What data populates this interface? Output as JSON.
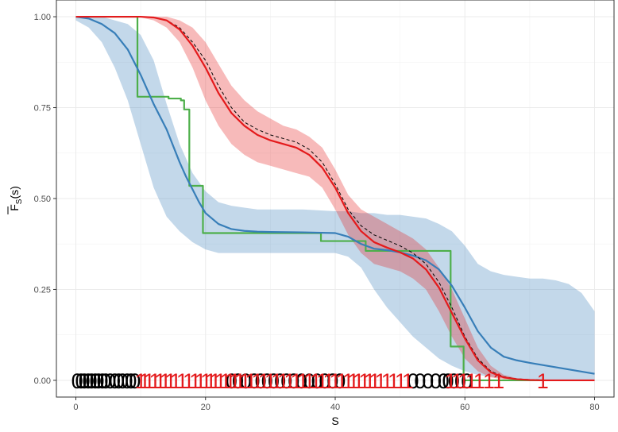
{
  "chart_data": {
    "type": "line",
    "xlabel": "S",
    "ylabel_main": "F",
    "ylabel_sub": "S",
    "ylabel_arg": "(s)",
    "xlim": [
      -3,
      83
    ],
    "ylim": [
      -0.046,
      1.046
    ],
    "x_ticks": [
      0,
      20,
      40,
      60,
      80
    ],
    "x_tick_labels": [
      "0",
      "20",
      "40",
      "60",
      "80"
    ],
    "y_ticks": [
      0,
      0.25,
      0.5,
      0.75,
      1
    ],
    "y_tick_labels": [
      "0.00",
      "0.25",
      "0.50",
      "0.75",
      "1.00"
    ],
    "grid": true,
    "legend": "none",
    "colors": {
      "blue": "#377eb8",
      "red": "#e41a1c",
      "green": "#4daf4a",
      "blue_band": "#377eb8",
      "red_band": "#e41a1c",
      "dashed": "#000000"
    },
    "series": [
      {
        "color_key": "blue_band",
        "kind": "band",
        "x": [
          0,
          2,
          4,
          6,
          8,
          10,
          12,
          14,
          16,
          18,
          20,
          22,
          24,
          26,
          28,
          30,
          35,
          40,
          42,
          44,
          46,
          48,
          50,
          52,
          54,
          56,
          58,
          60,
          62,
          64,
          66,
          68,
          70,
          72,
          74,
          76,
          78,
          80
        ],
        "upper": [
          1.0,
          1.0,
          1.0,
          0.99,
          0.98,
          0.95,
          0.88,
          0.76,
          0.65,
          0.57,
          0.52,
          0.49,
          0.48,
          0.475,
          0.47,
          0.47,
          0.47,
          0.465,
          0.465,
          0.46,
          0.46,
          0.455,
          0.455,
          0.45,
          0.445,
          0.43,
          0.41,
          0.37,
          0.32,
          0.3,
          0.29,
          0.285,
          0.28,
          0.28,
          0.275,
          0.265,
          0.24,
          0.19
        ],
        "lower": [
          0.99,
          0.97,
          0.93,
          0.86,
          0.77,
          0.65,
          0.53,
          0.45,
          0.41,
          0.38,
          0.36,
          0.35,
          0.35,
          0.35,
          0.35,
          0.35,
          0.35,
          0.35,
          0.34,
          0.31,
          0.25,
          0.2,
          0.16,
          0.12,
          0.09,
          0.06,
          0.04,
          0.025,
          0.015,
          0.01,
          0.005,
          0.003,
          0.002,
          0.001,
          0.0,
          0.0,
          0.0,
          0.0
        ]
      },
      {
        "color_key": "red_band",
        "kind": "band",
        "x": [
          0,
          5,
          8,
          10,
          12,
          14,
          16,
          18,
          20,
          22,
          24,
          26,
          28,
          30,
          32,
          34,
          36,
          38,
          40,
          42,
          44,
          46,
          48,
          50,
          52,
          54,
          56,
          58,
          60,
          62,
          64,
          66,
          68,
          70,
          72,
          74,
          76,
          78,
          80
        ],
        "upper": [
          1.0,
          1.0,
          1.0,
          1.0,
          1.0,
          1.0,
          0.99,
          0.97,
          0.93,
          0.87,
          0.81,
          0.77,
          0.74,
          0.72,
          0.7,
          0.69,
          0.67,
          0.64,
          0.58,
          0.51,
          0.47,
          0.45,
          0.43,
          0.41,
          0.39,
          0.36,
          0.31,
          0.25,
          0.17,
          0.09,
          0.04,
          0.015,
          0.006,
          0.002,
          0.001,
          0.0,
          0.0,
          0.0,
          0.0
        ],
        "lower": [
          1.0,
          1.0,
          1.0,
          0.998,
          0.99,
          0.97,
          0.93,
          0.86,
          0.77,
          0.7,
          0.65,
          0.62,
          0.6,
          0.59,
          0.58,
          0.57,
          0.56,
          0.53,
          0.47,
          0.4,
          0.35,
          0.32,
          0.31,
          0.3,
          0.28,
          0.25,
          0.19,
          0.12,
          0.06,
          0.025,
          0.008,
          0.003,
          0.001,
          0.0,
          0.0,
          0.0,
          0.0,
          0.0,
          0.0
        ]
      },
      {
        "color_key": "green",
        "kind": "step",
        "x": [
          0,
          9.5,
          9.5,
          14.3,
          14.3,
          16.2,
          16.2,
          16.7,
          16.7,
          17.5,
          17.5,
          19.6,
          19.6,
          37.8,
          37.8,
          44.7,
          44.7,
          57.8,
          57.8,
          59.8,
          59.8,
          63.2,
          63.2,
          72
        ],
        "y": [
          1.0,
          1.0,
          0.78,
          0.78,
          0.775,
          0.775,
          0.77,
          0.77,
          0.745,
          0.745,
          0.535,
          0.535,
          0.405,
          0.405,
          0.383,
          0.383,
          0.356,
          0.356,
          0.093,
          0.093,
          0.0,
          0.0,
          0.0,
          0.0
        ]
      },
      {
        "color_key": "blue",
        "kind": "line",
        "x": [
          0,
          2,
          4,
          6,
          8,
          10,
          12,
          14,
          16,
          17,
          18,
          19,
          20,
          22,
          24,
          26,
          28,
          30,
          35,
          40,
          42,
          44,
          46,
          48,
          50,
          52,
          54,
          56,
          58,
          60,
          62,
          64,
          66,
          68,
          70,
          72,
          74,
          76,
          78,
          80
        ],
        "y": [
          1.0,
          0.995,
          0.98,
          0.955,
          0.91,
          0.84,
          0.76,
          0.69,
          0.6,
          0.56,
          0.525,
          0.49,
          0.46,
          0.43,
          0.416,
          0.411,
          0.409,
          0.408,
          0.407,
          0.405,
          0.395,
          0.375,
          0.362,
          0.358,
          0.352,
          0.343,
          0.33,
          0.305,
          0.26,
          0.2,
          0.135,
          0.09,
          0.065,
          0.055,
          0.048,
          0.042,
          0.036,
          0.03,
          0.024,
          0.018
        ]
      },
      {
        "color_key": "dashed",
        "kind": "dashed",
        "x": [
          0,
          5,
          8,
          10,
          12,
          14,
          16,
          18,
          20,
          22,
          24,
          26,
          28,
          30,
          32,
          34,
          36,
          38,
          40,
          42,
          44,
          46,
          48,
          50,
          52,
          54,
          56,
          58,
          60,
          62,
          64,
          66,
          68,
          70,
          72,
          74,
          76,
          78,
          80
        ],
        "y": [
          1.0,
          1.0,
          1.0,
          1.0,
          0.998,
          0.99,
          0.97,
          0.93,
          0.88,
          0.81,
          0.75,
          0.71,
          0.69,
          0.675,
          0.665,
          0.655,
          0.635,
          0.6,
          0.54,
          0.47,
          0.425,
          0.4,
          0.385,
          0.37,
          0.35,
          0.32,
          0.27,
          0.2,
          0.12,
          0.06,
          0.025,
          0.01,
          0.004,
          0.002,
          0.001,
          0.0,
          0.0,
          0.0,
          0.0
        ]
      },
      {
        "color_key": "red",
        "kind": "line",
        "x": [
          0,
          5,
          8,
          10,
          12,
          14,
          16,
          18,
          20,
          22,
          24,
          26,
          28,
          30,
          32,
          34,
          36,
          38,
          40,
          42,
          44,
          46,
          48,
          50,
          52,
          54,
          56,
          58,
          60,
          62,
          64,
          66,
          68,
          70,
          72,
          74,
          76,
          78,
          80
        ],
        "y": [
          1.0,
          1.0,
          1.0,
          1.0,
          0.998,
          0.99,
          0.965,
          0.92,
          0.86,
          0.79,
          0.735,
          0.7,
          0.675,
          0.66,
          0.65,
          0.64,
          0.62,
          0.585,
          0.53,
          0.46,
          0.41,
          0.38,
          0.365,
          0.352,
          0.335,
          0.305,
          0.255,
          0.185,
          0.115,
          0.055,
          0.022,
          0.008,
          0.003,
          0.001,
          0.0,
          0.0,
          0.0,
          0.0,
          0.0
        ]
      }
    ],
    "rug_labels": [
      {
        "text": "0",
        "x": [
          0.2,
          0.8,
          1.3,
          1.9,
          2.4,
          3.0,
          3.5,
          4.1,
          4.6,
          5.3,
          6.0,
          6.6,
          7.2,
          7.9,
          8.5,
          9.1,
          24.0,
          25.0,
          26.2,
          27.5,
          28.5,
          29.5,
          30.5,
          31.5,
          32.5,
          33.6,
          34.8,
          36.0,
          37.2,
          38.4,
          39.6,
          40.7,
          52.0,
          53.1,
          54.3,
          55.5,
          56.7,
          57.4,
          58.3,
          59.3,
          60.3
        ]
      },
      {
        "text": "1",
        "x": [
          10.0,
          10.6,
          11.3,
          12.2,
          13.0,
          13.8,
          14.6,
          15.4,
          16.4,
          17.4,
          18.4,
          19.2,
          20.1,
          20.8,
          21.5,
          22.3,
          23.1,
          23.8,
          24.5,
          25.3,
          26.1,
          27.0,
          28.0,
          29.0,
          30.0,
          31.0,
          32.0,
          33.0,
          34.0,
          35.0,
          36.0,
          37.0,
          38.0,
          39.0,
          40.0,
          41.0,
          42.0,
          42.8,
          43.6,
          44.5,
          45.3,
          46.1,
          47.0,
          48.0,
          49.0,
          50.1,
          51.2,
          57.8,
          58.8,
          59.8,
          61.0,
          62.2,
          63.7,
          65.2,
          72.0
        ]
      }
    ]
  }
}
